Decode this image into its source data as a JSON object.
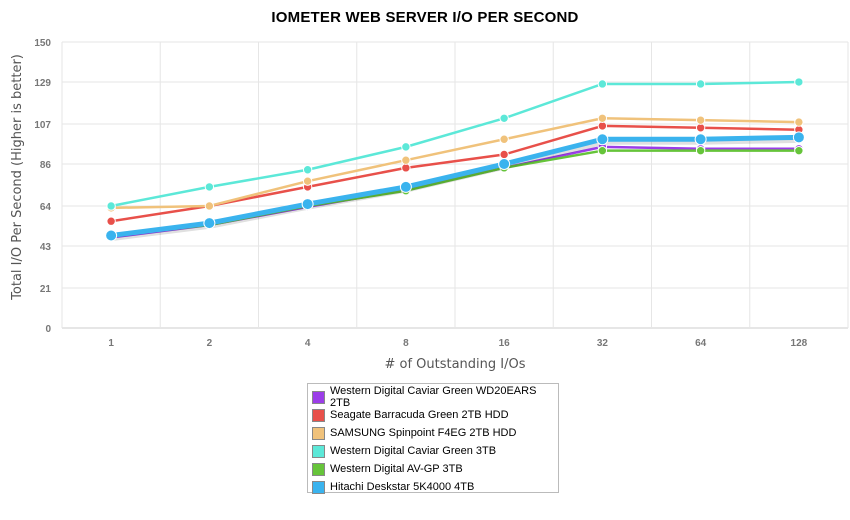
{
  "chart_data": {
    "type": "line",
    "title": "IOMETER WEB SERVER I/O PER SECOND",
    "xlabel": "# of Outstanding I/Os",
    "ylabel": "Total I/O Per Second (Higher is better)",
    "categories": [
      "1",
      "2",
      "4",
      "8",
      "16",
      "32",
      "64",
      "128"
    ],
    "y_ticks": [
      0,
      21,
      43,
      64,
      86,
      107,
      129,
      150
    ],
    "ylim": [
      0,
      150
    ],
    "grid": true,
    "legend_position": "bottom",
    "series": [
      {
        "name": "Western Digital Caviar Green WD20EARS 2TB",
        "color": "#9b3de8",
        "values": [
          47.5,
          54,
          63.5,
          72.5,
          84,
          95,
          94,
          94
        ]
      },
      {
        "name": "Seagate Barracuda Green 2TB HDD",
        "color": "#e8504a",
        "values": [
          56,
          64,
          74,
          84,
          91,
          106,
          105,
          104
        ]
      },
      {
        "name": "SAMSUNG Spinpoint F4EG 2TB HDD",
        "color": "#f0c27b",
        "values": [
          63,
          64,
          77,
          88,
          99,
          110,
          109,
          108
        ]
      },
      {
        "name": "Western Digital Caviar Green 3TB",
        "color": "#5ce8d8",
        "values": [
          64,
          74,
          83,
          95,
          110,
          128,
          128,
          129
        ]
      },
      {
        "name": "Western Digital AV-GP 3TB",
        "color": "#66c43a",
        "values": [
          48.5,
          54,
          64,
          72,
          84,
          93,
          93,
          93
        ]
      },
      {
        "name": "Hitachi Deskstar 5K4000 4TB",
        "color": "#3ab3ee",
        "values": [
          48.5,
          55,
          65,
          74,
          86,
          99,
          99,
          100
        ]
      }
    ]
  }
}
